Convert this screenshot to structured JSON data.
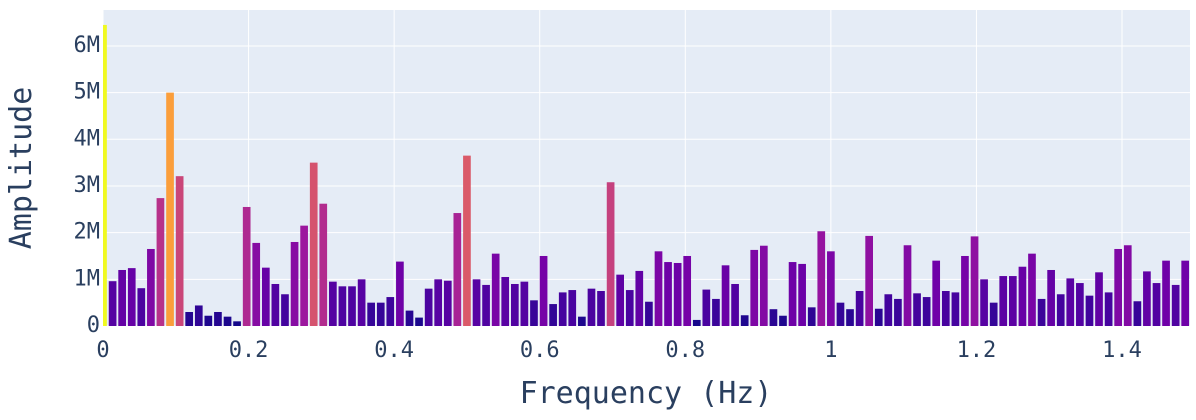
{
  "chart_data": {
    "type": "bar",
    "x_label": "Frequency (Hz)",
    "y_label": "Amplitude",
    "x": [
      0,
      0.0132,
      0.0263,
      0.0395,
      0.0526,
      0.0658,
      0.0789,
      0.0921,
      0.1053,
      0.1184,
      0.1316,
      0.1447,
      0.1579,
      0.1711,
      0.1842,
      0.1974,
      0.2105,
      0.2237,
      0.2368,
      0.25,
      0.2632,
      0.2763,
      0.2895,
      0.3026,
      0.3158,
      0.3289,
      0.3421,
      0.3553,
      0.3684,
      0.3816,
      0.3947,
      0.4079,
      0.4211,
      0.4342,
      0.4474,
      0.4605,
      0.4737,
      0.4868,
      0.5,
      0.5132,
      0.5263,
      0.5395,
      0.5526,
      0.5658,
      0.5789,
      0.5921,
      0.6053,
      0.6184,
      0.6316,
      0.6447,
      0.6579,
      0.6711,
      0.6842,
      0.6974,
      0.7105,
      0.7237,
      0.7368,
      0.75,
      0.7632,
      0.7763,
      0.7895,
      0.8026,
      0.8158,
      0.8289,
      0.8421,
      0.8553,
      0.8684,
      0.8816,
      0.8947,
      0.9079,
      0.9211,
      0.9342,
      0.9474,
      0.9605,
      0.9737,
      0.9868,
      1.0,
      1.0132,
      1.0263,
      1.0395,
      1.0526,
      1.0658,
      1.0789,
      1.0921,
      1.1053,
      1.1184,
      1.1316,
      1.1447,
      1.1579,
      1.1711,
      1.1842,
      1.1974,
      1.2105,
      1.2237,
      1.2368,
      1.25,
      1.2632,
      1.2763,
      1.2895,
      1.3026,
      1.3158,
      1.3289,
      1.3421,
      1.3553,
      1.3684,
      1.3816,
      1.3947,
      1.4079,
      1.4211,
      1.4342,
      1.4474,
      1.4605,
      1.4737,
      1.4868
    ],
    "values": [
      6450000,
      960000,
      1200000,
      1240000,
      810000,
      1650000,
      2740000,
      5000000,
      3210000,
      300000,
      440000,
      220000,
      300000,
      200000,
      100000,
      2550000,
      1780000,
      1250000,
      900000,
      680000,
      1800000,
      2150000,
      3500000,
      2620000,
      950000,
      850000,
      850000,
      1000000,
      500000,
      500000,
      620000,
      1380000,
      330000,
      180000,
      800000,
      1000000,
      970000,
      2420000,
      3650000,
      1000000,
      880000,
      1550000,
      1050000,
      900000,
      950000,
      550000,
      1500000,
      470000,
      720000,
      770000,
      200000,
      800000,
      750000,
      3080000,
      1100000,
      770000,
      1180000,
      520000,
      1600000,
      1370000,
      1350000,
      1500000,
      130000,
      780000,
      580000,
      1300000,
      900000,
      230000,
      1630000,
      1720000,
      360000,
      220000,
      1370000,
      1330000,
      400000,
      2030000,
      1600000,
      500000,
      360000,
      750000,
      1930000,
      370000,
      680000,
      580000,
      1730000,
      700000,
      620000,
      1400000,
      750000,
      720000,
      1500000,
      1920000,
      1000000,
      500000,
      1070000,
      1070000,
      1270000,
      1550000,
      580000,
      1200000,
      680000,
      1020000,
      920000,
      650000,
      1150000,
      720000,
      1650000,
      1730000,
      530000,
      1170000,
      920000,
      1400000,
      880000,
      1400000
    ],
    "colorscale": [
      "#0d0887",
      "#46039f",
      "#7201a8",
      "#9c179e",
      "#bd3786",
      "#d8576b",
      "#ed7953",
      "#fb9f3a",
      "#fdca26",
      "#f0f921"
    ],
    "xlim": [
      0,
      1.4934
    ],
    "xticks": [
      0,
      0.2,
      0.4,
      0.6,
      0.8,
      1,
      1.2,
      1.4
    ],
    "ylim": [
      0,
      6770000
    ],
    "yticks": [
      0,
      {
        "value": 1000000,
        "label": "1M"
      },
      {
        "value": 2000000,
        "label": "2M"
      },
      {
        "value": 3000000,
        "label": "3M"
      },
      {
        "value": 4000000,
        "label": "4M"
      },
      {
        "value": 5000000,
        "label": "5M"
      },
      {
        "value": 6000000,
        "label": "6M"
      }
    ],
    "grid": true,
    "background": "#e5ecf6"
  }
}
